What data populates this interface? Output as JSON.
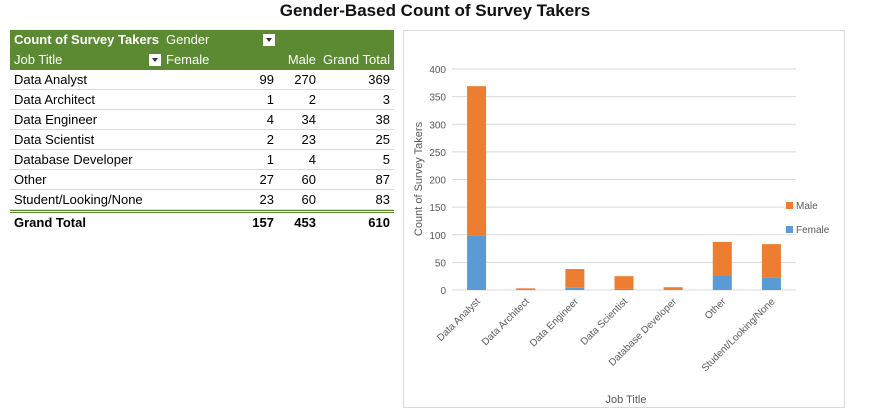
{
  "title": "Gender-Based Count of Survey Takers",
  "pivot": {
    "header_top": {
      "measure": "Count of Survey Takers",
      "column_field": "Gender"
    },
    "header_cols": {
      "row_field": "Job Title",
      "female": "Female",
      "male": "Male",
      "grand_total": "Grand Total"
    },
    "rows": [
      {
        "label": "Data Analyst",
        "female": "99",
        "male": "270",
        "total": "369"
      },
      {
        "label": "Data Architect",
        "female": "1",
        "male": "2",
        "total": "3"
      },
      {
        "label": "Data Engineer",
        "female": "4",
        "male": "34",
        "total": "38"
      },
      {
        "label": "Data Scientist",
        "female": "2",
        "male": "23",
        "total": "25"
      },
      {
        "label": "Database Developer",
        "female": "1",
        "male": "4",
        "total": "5"
      },
      {
        "label": "Other",
        "female": "27",
        "male": "60",
        "total": "87"
      },
      {
        "label": "Student/Looking/None",
        "female": "23",
        "male": "60",
        "total": "83"
      }
    ],
    "grand_total": {
      "label": "Grand Total",
      "female": "157",
      "male": "453",
      "total": "610"
    }
  },
  "chart_data": {
    "type": "bar",
    "stacked": true,
    "categories": [
      "Data Analyst",
      "Data Architect",
      "Data Engineer",
      "Data Scientist",
      "Database Developer",
      "Other",
      "Student/Looking/None"
    ],
    "series": [
      {
        "name": "Female",
        "values": [
          99,
          1,
          4,
          2,
          1,
          27,
          23
        ],
        "color": "#5b9bd5"
      },
      {
        "name": "Male",
        "values": [
          270,
          2,
          34,
          23,
          4,
          60,
          60
        ],
        "color": "#ed7d31"
      }
    ],
    "xlabel": "Job Title",
    "ylabel": "Count of Survey Takers",
    "ylim": [
      0,
      400
    ],
    "yticks": [
      0,
      50,
      100,
      150,
      200,
      250,
      300,
      350,
      400
    ],
    "grid": true,
    "legend": "right",
    "legend_order": [
      "Male",
      "Female"
    ]
  }
}
